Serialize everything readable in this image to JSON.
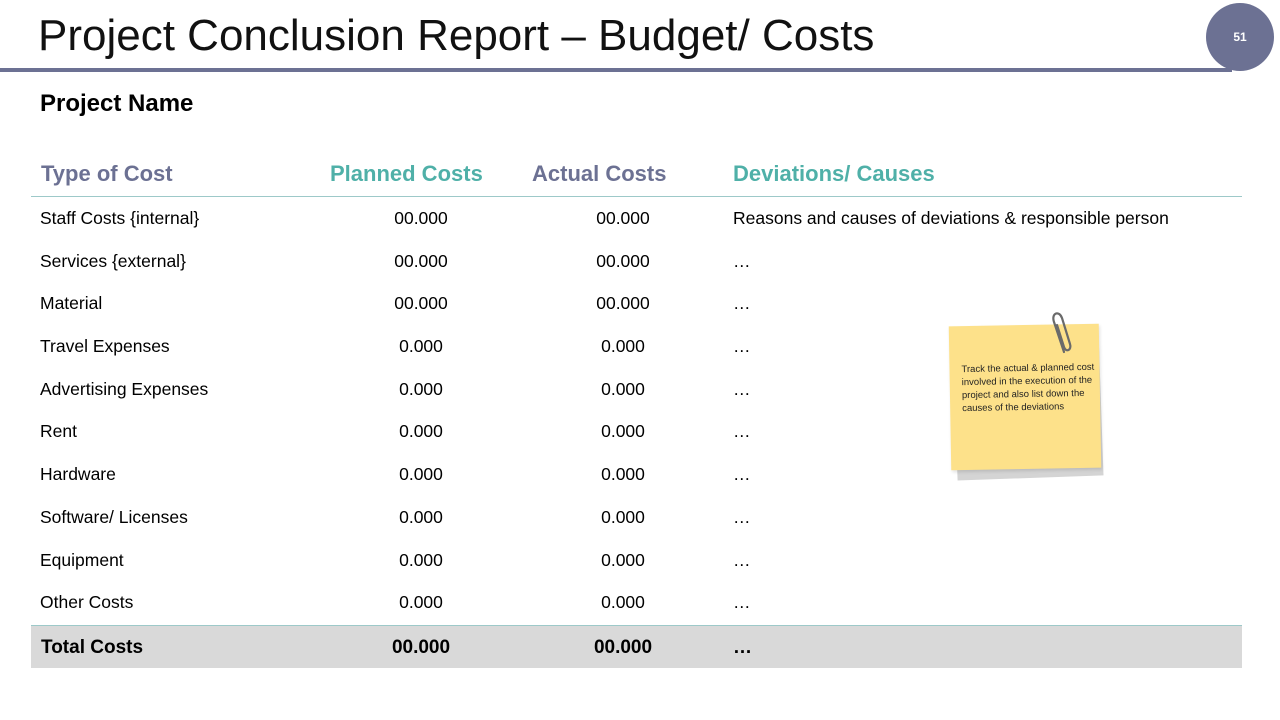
{
  "header": {
    "title": "Project Conclusion Report – Budget/ Costs",
    "slide_number": "51"
  },
  "project_name": "Project Name",
  "table": {
    "columns": [
      "Type of Cost",
      "Planned Costs",
      "Actual Costs",
      "Deviations/ Causes"
    ],
    "rows": [
      [
        "Staff Costs {internal}",
        "00.000",
        "00.000",
        "Reasons and causes of deviations & responsible person"
      ],
      [
        "Services {external}",
        "00.000",
        "00.000",
        "…"
      ],
      [
        "Material",
        "00.000",
        "00.000",
        "…"
      ],
      [
        "Travel Expenses",
        "0.000",
        "0.000",
        "…"
      ],
      [
        "Advertising Expenses",
        "0.000",
        "0.000",
        "…"
      ],
      [
        "Rent",
        "0.000",
        "0.000",
        "…"
      ],
      [
        "Hardware",
        "0.000",
        "0.000",
        "…"
      ],
      [
        "Software/ Licenses",
        "0.000",
        "0.000",
        "…"
      ],
      [
        "Equipment",
        "0.000",
        "0.000",
        "…"
      ],
      [
        "Other Costs",
        "0.000",
        "0.000",
        "…"
      ]
    ],
    "total": [
      "Total Costs",
      "00.000",
      "00.000",
      "…"
    ]
  },
  "sticky_note": {
    "text": "Track the actual & planned cost involved in the execution of the project and also list down the causes of the deviations",
    "icon": "paperclip-icon"
  },
  "colors": {
    "accent_purple": "#6c7193",
    "accent_teal": "#4fb0a8",
    "sticky_yellow": "#fde18a",
    "total_row_gray": "#d9d9d9"
  }
}
